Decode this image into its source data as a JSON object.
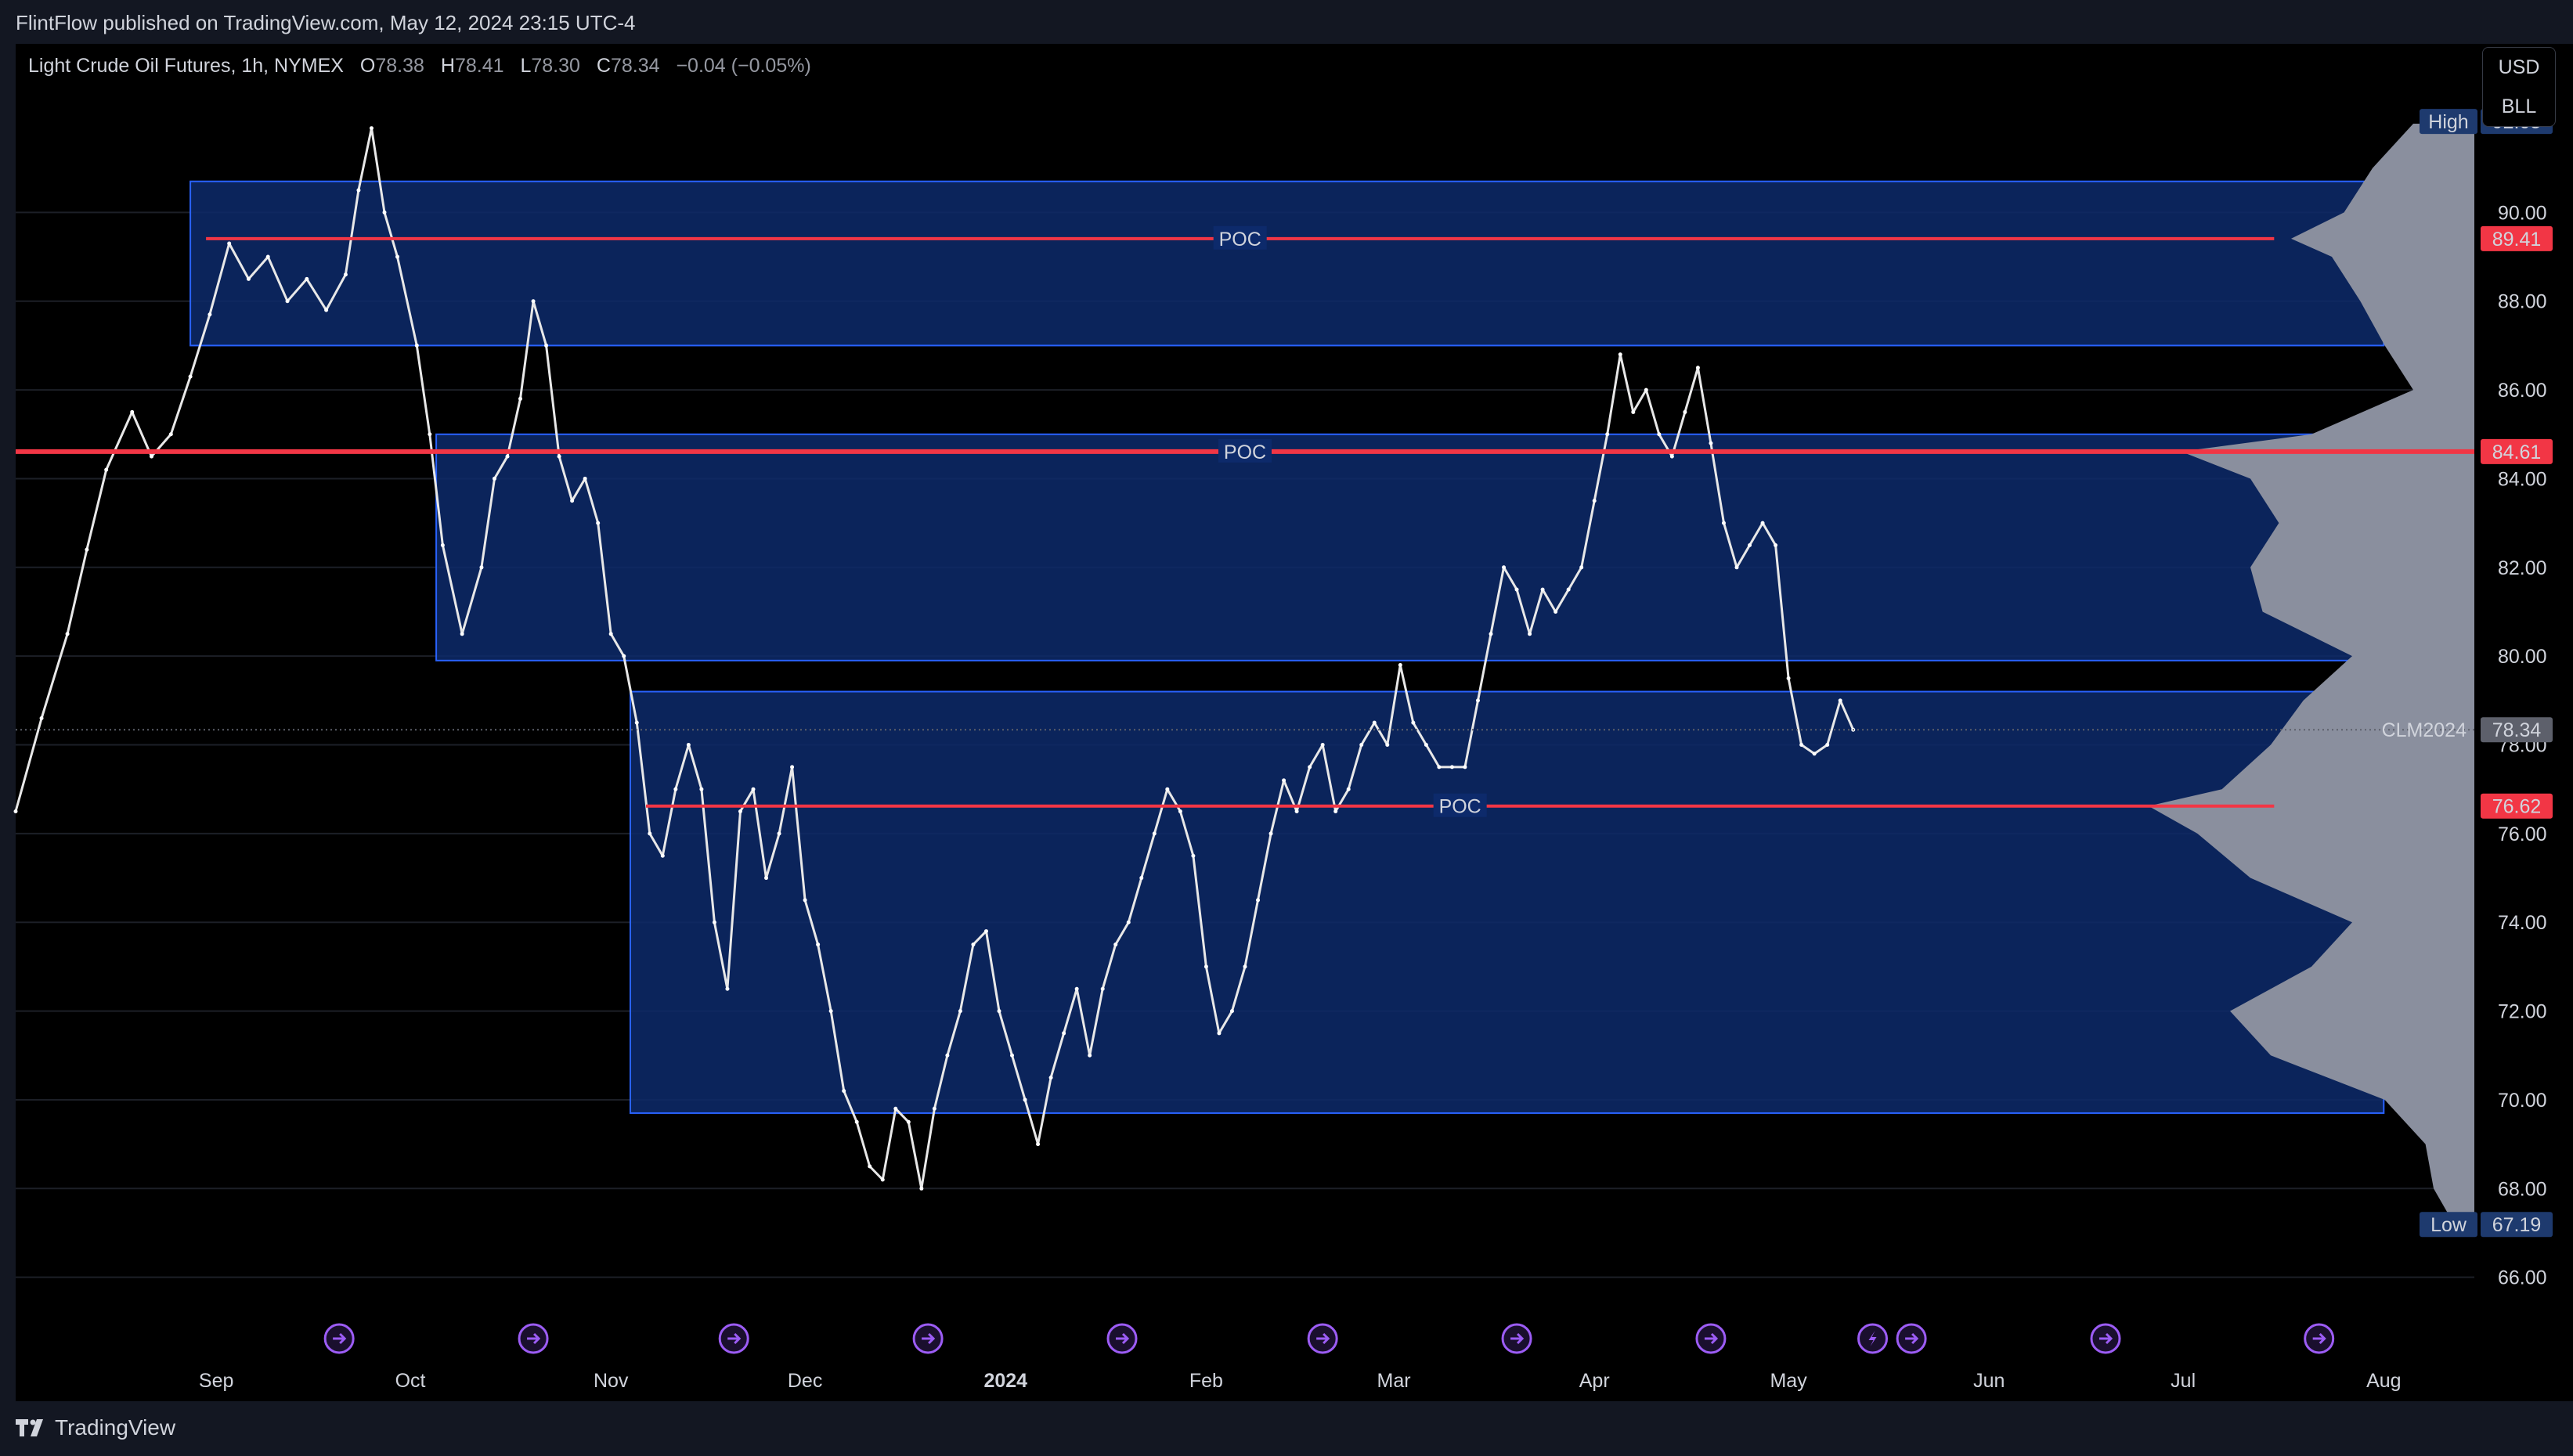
{
  "header": {
    "publisher_text": "FlintFlow published on TradingView.com, May 12, 2024 23:15 UTC-4"
  },
  "legend": {
    "symbol": "Light Crude Oil Futures, 1h, NYMEX",
    "open_label": "O",
    "open": "78.38",
    "high_label": "H",
    "high": "78.41",
    "low_label": "L",
    "low": "78.30",
    "close_label": "C",
    "close": "78.34",
    "change": "−0.04 (−0.05%)"
  },
  "unit_box": {
    "currency": "USD",
    "unit": "BLL"
  },
  "footer": {
    "brand": "TradingView"
  },
  "colors": {
    "background": "#000000",
    "profile_fill": "#0d2a6b",
    "profile_border": "#2962ff",
    "poc_line": "#f23645",
    "volume_profile": "#8a8f9e",
    "event_icon": "#9c5cf5"
  },
  "chart_data": {
    "type": "line",
    "title": "Light Crude Oil Futures, 1h, NYMEX",
    "y_axis": {
      "side": "right",
      "ticks": [
        "90.00",
        "88.00",
        "86.00",
        "84.00",
        "82.00",
        "80.00",
        "78.00",
        "76.00",
        "74.00",
        "72.00",
        "70.00",
        "68.00",
        "66.00"
      ],
      "ylim": [
        65.5,
        93.8
      ]
    },
    "x_axis": {
      "ticks": [
        "Sep",
        "Oct",
        "Nov",
        "Dec",
        "2024",
        "Feb",
        "Mar",
        "Apr",
        "May",
        "Jun",
        "Jul",
        "Aug"
      ]
    },
    "price_labels": [
      {
        "text": "High",
        "value": "92.05",
        "kind": "high"
      },
      {
        "value": "89.41",
        "kind": "poc"
      },
      {
        "value": "84.61",
        "kind": "poc"
      },
      {
        "text": "CLM2024",
        "value": "78.34",
        "kind": "last"
      },
      {
        "value": "76.62",
        "kind": "poc"
      },
      {
        "text": "Low",
        "value": "67.19",
        "kind": "low"
      }
    ],
    "value_area_boxes": [
      {
        "from": "2023-08-28",
        "to": "2024-08-01",
        "low": 87.0,
        "high": 90.7,
        "poc": 89.41,
        "poc_label": "POC"
      },
      {
        "from": "2023-10-05",
        "to": "2024-08-01",
        "low": 79.9,
        "high": 85.0,
        "poc": 84.61,
        "poc_label": "POC"
      },
      {
        "from": "2023-11-04",
        "to": "2024-08-01",
        "low": 69.7,
        "high": 79.2,
        "poc": 76.62,
        "poc_label": "POC"
      }
    ],
    "series": [
      {
        "values": [
          [
            "2023-08-01",
            76.5
          ],
          [
            "2023-08-05",
            78.6
          ],
          [
            "2023-08-09",
            80.5
          ],
          [
            "2023-08-12",
            82.4
          ],
          [
            "2023-08-15",
            84.2
          ],
          [
            "2023-08-19",
            85.5
          ],
          [
            "2023-08-22",
            84.5
          ],
          [
            "2023-08-25",
            85.0
          ],
          [
            "2023-08-28",
            86.3
          ],
          [
            "2023-08-31",
            87.7
          ],
          [
            "2023-09-03",
            89.3
          ],
          [
            "2023-09-06",
            88.5
          ],
          [
            "2023-09-09",
            89.0
          ],
          [
            "2023-09-12",
            88.0
          ],
          [
            "2023-09-15",
            88.5
          ],
          [
            "2023-09-18",
            87.8
          ],
          [
            "2023-09-21",
            88.6
          ],
          [
            "2023-09-23",
            90.5
          ],
          [
            "2023-09-25",
            91.9
          ],
          [
            "2023-09-27",
            90.0
          ],
          [
            "2023-09-29",
            89.0
          ],
          [
            "2023-10-02",
            87.0
          ],
          [
            "2023-10-04",
            85.0
          ],
          [
            "2023-10-06",
            82.5
          ],
          [
            "2023-10-09",
            80.5
          ],
          [
            "2023-10-12",
            82.0
          ],
          [
            "2023-10-14",
            84.0
          ],
          [
            "2023-10-16",
            84.5
          ],
          [
            "2023-10-18",
            85.8
          ],
          [
            "2023-10-20",
            88.0
          ],
          [
            "2023-10-22",
            87.0
          ],
          [
            "2023-10-24",
            84.5
          ],
          [
            "2023-10-26",
            83.5
          ],
          [
            "2023-10-28",
            84.0
          ],
          [
            "2023-10-30",
            83.0
          ],
          [
            "2023-11-01",
            80.5
          ],
          [
            "2023-11-03",
            80.0
          ],
          [
            "2023-11-05",
            78.5
          ],
          [
            "2023-11-07",
            76.0
          ],
          [
            "2023-11-09",
            75.5
          ],
          [
            "2023-11-11",
            77.0
          ],
          [
            "2023-11-13",
            78.0
          ],
          [
            "2023-11-15",
            77.0
          ],
          [
            "2023-11-17",
            74.0
          ],
          [
            "2023-11-19",
            72.5
          ],
          [
            "2023-11-21",
            76.5
          ],
          [
            "2023-11-23",
            77.0
          ],
          [
            "2023-11-25",
            75.0
          ],
          [
            "2023-11-27",
            76.0
          ],
          [
            "2023-11-29",
            77.5
          ],
          [
            "2023-12-01",
            74.5
          ],
          [
            "2023-12-03",
            73.5
          ],
          [
            "2023-12-05",
            72.0
          ],
          [
            "2023-12-07",
            70.2
          ],
          [
            "2023-12-09",
            69.5
          ],
          [
            "2023-12-11",
            68.5
          ],
          [
            "2023-12-13",
            68.2
          ],
          [
            "2023-12-15",
            69.8
          ],
          [
            "2023-12-17",
            69.5
          ],
          [
            "2023-12-19",
            68.0
          ],
          [
            "2023-12-21",
            69.8
          ],
          [
            "2023-12-23",
            71.0
          ],
          [
            "2023-12-25",
            72.0
          ],
          [
            "2023-12-27",
            73.5
          ],
          [
            "2023-12-29",
            73.8
          ],
          [
            "2023-12-31",
            72.0
          ],
          [
            "2024-01-02",
            71.0
          ],
          [
            "2024-01-04",
            70.0
          ],
          [
            "2024-01-06",
            69.0
          ],
          [
            "2024-01-08",
            70.5
          ],
          [
            "2024-01-10",
            71.5
          ],
          [
            "2024-01-12",
            72.5
          ],
          [
            "2024-01-14",
            71.0
          ],
          [
            "2024-01-16",
            72.5
          ],
          [
            "2024-01-18",
            73.5
          ],
          [
            "2024-01-20",
            74.0
          ],
          [
            "2024-01-22",
            75.0
          ],
          [
            "2024-01-24",
            76.0
          ],
          [
            "2024-01-26",
            77.0
          ],
          [
            "2024-01-28",
            76.5
          ],
          [
            "2024-01-30",
            75.5
          ],
          [
            "2024-02-01",
            73.0
          ],
          [
            "2024-02-03",
            71.5
          ],
          [
            "2024-02-05",
            72.0
          ],
          [
            "2024-02-07",
            73.0
          ],
          [
            "2024-02-09",
            74.5
          ],
          [
            "2024-02-11",
            76.0
          ],
          [
            "2024-02-13",
            77.2
          ],
          [
            "2024-02-15",
            76.5
          ],
          [
            "2024-02-17",
            77.5
          ],
          [
            "2024-02-19",
            78.0
          ],
          [
            "2024-02-21",
            76.5
          ],
          [
            "2024-02-23",
            77.0
          ],
          [
            "2024-02-25",
            78.0
          ],
          [
            "2024-02-27",
            78.5
          ],
          [
            "2024-02-29",
            78.0
          ],
          [
            "2024-03-02",
            79.8
          ],
          [
            "2024-03-04",
            78.5
          ],
          [
            "2024-03-06",
            78.0
          ],
          [
            "2024-03-08",
            77.5
          ],
          [
            "2024-03-10",
            77.5
          ],
          [
            "2024-03-12",
            77.5
          ],
          [
            "2024-03-14",
            79.0
          ],
          [
            "2024-03-16",
            80.5
          ],
          [
            "2024-03-18",
            82.0
          ],
          [
            "2024-03-20",
            81.5
          ],
          [
            "2024-03-22",
            80.5
          ],
          [
            "2024-03-24",
            81.5
          ],
          [
            "2024-03-26",
            81.0
          ],
          [
            "2024-03-28",
            81.5
          ],
          [
            "2024-03-30",
            82.0
          ],
          [
            "2024-04-01",
            83.5
          ],
          [
            "2024-04-03",
            85.0
          ],
          [
            "2024-04-05",
            86.8
          ],
          [
            "2024-04-07",
            85.5
          ],
          [
            "2024-04-09",
            86.0
          ],
          [
            "2024-04-11",
            85.0
          ],
          [
            "2024-04-13",
            84.5
          ],
          [
            "2024-04-15",
            85.5
          ],
          [
            "2024-04-17",
            86.5
          ],
          [
            "2024-04-19",
            84.8
          ],
          [
            "2024-04-21",
            83.0
          ],
          [
            "2024-04-23",
            82.0
          ],
          [
            "2024-04-25",
            82.5
          ],
          [
            "2024-04-27",
            83.0
          ],
          [
            "2024-04-29",
            82.5
          ],
          [
            "2024-05-01",
            79.5
          ],
          [
            "2024-05-03",
            78.0
          ],
          [
            "2024-05-05",
            77.8
          ],
          [
            "2024-05-07",
            78.0
          ],
          [
            "2024-05-09",
            79.0
          ],
          [
            "2024-05-11",
            78.34
          ]
        ]
      }
    ],
    "volume_profile": {
      "note": "horizontal volume histogram on the right, levels in price units, sizes relative",
      "levels": [
        [
          92.0,
          0.15
        ],
        [
          91.0,
          0.25
        ],
        [
          90.0,
          0.32
        ],
        [
          89.41,
          0.45
        ],
        [
          89.0,
          0.35
        ],
        [
          88.0,
          0.28
        ],
        [
          87.0,
          0.22
        ],
        [
          86.0,
          0.15
        ],
        [
          85.0,
          0.4
        ],
        [
          84.61,
          0.72
        ],
        [
          84.0,
          0.55
        ],
        [
          83.0,
          0.48
        ],
        [
          82.0,
          0.55
        ],
        [
          81.0,
          0.52
        ],
        [
          80.0,
          0.3
        ],
        [
          79.0,
          0.42
        ],
        [
          78.0,
          0.5
        ],
        [
          77.0,
          0.62
        ],
        [
          76.62,
          0.8
        ],
        [
          76.0,
          0.68
        ],
        [
          75.0,
          0.55
        ],
        [
          74.0,
          0.3
        ],
        [
          73.0,
          0.4
        ],
        [
          72.0,
          0.6
        ],
        [
          71.0,
          0.5
        ],
        [
          70.0,
          0.22
        ],
        [
          69.0,
          0.12
        ],
        [
          68.0,
          0.1
        ],
        [
          67.2,
          0.05
        ]
      ]
    },
    "event_markers": {
      "dividend_icons": [
        "2023-09-20",
        "2023-10-20",
        "2023-11-20",
        "2023-12-20",
        "2024-01-19",
        "2024-02-19",
        "2024-03-20",
        "2024-04-19",
        "2024-05-20",
        "2024-06-19",
        "2024-07-22"
      ],
      "split_icons": [
        "2024-05-14"
      ]
    }
  }
}
